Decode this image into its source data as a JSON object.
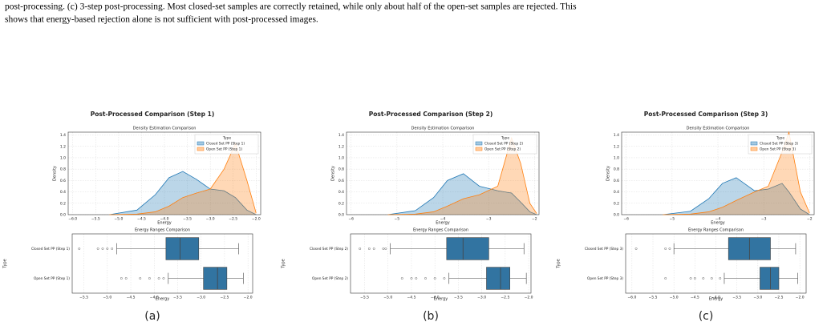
{
  "caption": [
    "post-processing. (c) 3-step post-processing. Most closed-set samples are correctly retained, while only about half of the open-set samples are rejected. This",
    "shows that energy-based rejection alone is not sufficient with post-processed images."
  ],
  "panels": [
    {
      "label": "(a)",
      "title": "Post-Processed Comparison (Step 1)",
      "density": {
        "title": "Density Estimation Comparison",
        "xlabel": "Energy",
        "ylabel": "Density",
        "legend_title": "Type",
        "xlim": [
          -6.1,
          -1.9
        ],
        "xticks": [
          {
            "value": -6,
            "label": "−6.0"
          },
          {
            "value": -5.5,
            "label": "−5.5"
          },
          {
            "value": -5,
            "label": "−5.0"
          },
          {
            "value": -4.5,
            "label": "−4.5"
          },
          {
            "value": -4,
            "label": "−4.0"
          },
          {
            "value": -3.5,
            "label": "−3.5"
          },
          {
            "value": -3,
            "label": "−3.0"
          },
          {
            "value": -2.5,
            "label": "−2.5"
          },
          {
            "value": -2,
            "label": "−2.0"
          }
        ],
        "ylim": [
          0,
          1.45
        ],
        "yticks": [
          {
            "value": 0,
            "label": "0.0"
          },
          0.2,
          0.4,
          0.6,
          0.8,
          {
            "value": 1,
            "label": "1.0"
          },
          1.2,
          1.4
        ],
        "x": [
          -5.2,
          -4.6,
          -4.2,
          -3.9,
          -3.6,
          -3.3,
          -3.0,
          -2.7,
          -2.45,
          -2.2,
          -2.0
        ],
        "series": [
          {
            "name": "Closed Set PP (Step 1)",
            "color": "#1f77b4",
            "values": [
              0,
              0.08,
              0.35,
              0.65,
              0.76,
              0.62,
              0.45,
              0.42,
              0.3,
              0.08,
              0
            ]
          },
          {
            "name": "Open Set PP (Step 1)",
            "color": "#ff7f0e",
            "values": [
              0,
              0.01,
              0.05,
              0.15,
              0.3,
              0.38,
              0.45,
              0.8,
              1.25,
              0.6,
              0.03
            ]
          }
        ]
      },
      "box": {
        "title": "Energy Ranges Comparison",
        "xlabel": "Energy",
        "ylabel": "Type",
        "color": "#3274a1",
        "xlim": [
          -5.75,
          -1.9
        ],
        "xticks": [
          {
            "value": -5.5,
            "label": "−5.5"
          },
          {
            "value": -5,
            "label": "−5.0"
          },
          {
            "value": -4.5,
            "label": "−4.5"
          },
          {
            "value": -4,
            "label": "−4.0"
          },
          {
            "value": -3.5,
            "label": "−3.5"
          },
          {
            "value": -3,
            "label": "−3.0"
          },
          {
            "value": -2.5,
            "label": "−2.5"
          },
          {
            "value": -2,
            "label": "−2.0"
          }
        ],
        "categories": [
          "Closed Set PP (Step 1)",
          "Open Set PP (Step 1)"
        ],
        "boxes": [
          {
            "whisker_low": -4.8,
            "q1": -3.75,
            "median": -3.45,
            "q3": -3.05,
            "whisker_high": -2.2,
            "outliers": [
              -5.6,
              -5.2,
              -5.1,
              -5.0,
              -4.9
            ]
          },
          {
            "whisker_low": -3.7,
            "q1": -2.95,
            "median": -2.65,
            "q3": -2.45,
            "whisker_high": -2.1,
            "outliers": [
              -4.7,
              -4.6,
              -4.3,
              -4.1,
              -3.9,
              -3.8
            ]
          }
        ]
      }
    },
    {
      "label": "(b)",
      "title": "Post-Processed Comparison (Step 2)",
      "density": {
        "title": "Density Estimation Comparison",
        "xlabel": "Energy",
        "ylabel": "Density",
        "legend_title": "Type",
        "xlim": [
          -6.1,
          -1.9
        ],
        "xticks": [
          {
            "value": -6,
            "label": "−6"
          },
          {
            "value": -5,
            "label": "−5"
          },
          {
            "value": -4,
            "label": "−4"
          },
          {
            "value": -3,
            "label": "−3"
          },
          {
            "value": -2,
            "label": "−2"
          }
        ],
        "ylim": [
          0,
          1.45
        ],
        "yticks": [
          {
            "value": 0,
            "label": "0.0"
          },
          0.2,
          0.4,
          0.6,
          0.8,
          {
            "value": 1,
            "label": "1.0"
          },
          1.2,
          1.4
        ],
        "x": [
          -5.2,
          -4.6,
          -4.2,
          -3.9,
          -3.55,
          -3.2,
          -2.8,
          -2.5,
          -2.3,
          -2.1,
          -1.95
        ],
        "series": [
          {
            "name": "Closed Set PP (Step 2)",
            "color": "#1f77b4",
            "values": [
              0,
              0.07,
              0.3,
              0.6,
              0.72,
              0.5,
              0.42,
              0.38,
              0.22,
              0.05,
              0
            ]
          },
          {
            "name": "Open Set PP (Step 2)",
            "color": "#ff7f0e",
            "values": [
              0,
              0.01,
              0.05,
              0.15,
              0.28,
              0.35,
              0.5,
              1.35,
              0.9,
              0.2,
              0.02
            ]
          }
        ]
      },
      "box": {
        "title": "Energy Ranges Comparison",
        "xlabel": "Energy",
        "ylabel": "Type",
        "color": "#3274a1",
        "xlim": [
          -5.8,
          -1.95
        ],
        "xticks": [
          {
            "value": -5.5,
            "label": "−5.5"
          },
          {
            "value": -5,
            "label": "−5.0"
          },
          {
            "value": -4.5,
            "label": "−4.5"
          },
          {
            "value": -4,
            "label": "−4.0"
          },
          {
            "value": -3.5,
            "label": "−3.5"
          },
          {
            "value": -3,
            "label": "−3.0"
          },
          {
            "value": -2.5,
            "label": "−2.5"
          },
          {
            "value": -2,
            "label": "−2.0"
          }
        ],
        "categories": [
          "Closed Set PP (Step 2)",
          "Open Set PP (Step 2)"
        ],
        "boxes": [
          {
            "whisker_low": -4.95,
            "q1": -3.75,
            "median": -3.4,
            "q3": -2.85,
            "whisker_high": -2.1,
            "outliers": [
              -5.6,
              -5.4,
              -5.3,
              -5.1,
              -5.05
            ]
          },
          {
            "whisker_low": -3.7,
            "q1": -2.9,
            "median": -2.6,
            "q3": -2.4,
            "whisker_high": -2.05,
            "outliers": [
              -4.7,
              -4.5,
              -4.4,
              -4.2,
              -4.0,
              -3.8
            ]
          }
        ]
      }
    },
    {
      "label": "(c)",
      "title": "Post-Processed Comparison (Step 3)",
      "density": {
        "title": "Density Estimation Comparison",
        "xlabel": "Energy",
        "ylabel": "Density",
        "legend_title": "Type",
        "xlim": [
          -6.1,
          -1.9
        ],
        "xticks": [
          {
            "value": -6,
            "label": "−6"
          },
          {
            "value": -5,
            "label": "−5"
          },
          {
            "value": -4,
            "label": "−4"
          },
          {
            "value": -3,
            "label": "−3"
          },
          {
            "value": -2,
            "label": "−2"
          }
        ],
        "ylim": [
          0,
          1.45
        ],
        "yticks": [
          {
            "value": 0,
            "label": "0.0"
          },
          0.2,
          0.4,
          0.6,
          0.8,
          {
            "value": 1,
            "label": "1.0"
          },
          1.2,
          1.4
        ],
        "x": [
          -5.2,
          -4.6,
          -4.2,
          -3.9,
          -3.6,
          -3.2,
          -2.9,
          -2.6,
          -2.45,
          -2.2,
          -2.0
        ],
        "series": [
          {
            "name": "Closed Set PP (Step 3)",
            "color": "#1f77b4",
            "values": [
              0,
              0.06,
              0.28,
              0.55,
              0.65,
              0.42,
              0.45,
              0.55,
              0.4,
              0.1,
              0
            ]
          },
          {
            "name": "Open Set PP (Step 3)",
            "color": "#ff7f0e",
            "values": [
              0,
              0.01,
              0.05,
              0.13,
              0.25,
              0.4,
              0.5,
              1.1,
              1.45,
              0.4,
              0.03
            ]
          }
        ]
      },
      "box": {
        "title": "Energy Ranges Comparison",
        "xlabel": "Energy",
        "ylabel": "Type",
        "color": "#3274a1",
        "xlim": [
          -6.15,
          -1.85
        ],
        "xticks": [
          {
            "value": -6,
            "label": "−6.0"
          },
          {
            "value": -5.5,
            "label": "−5.5"
          },
          {
            "value": -5,
            "label": "−5.0"
          },
          {
            "value": -4.5,
            "label": "−4.5"
          },
          {
            "value": -4,
            "label": "−4.0"
          },
          {
            "value": -3.5,
            "label": "−3.5"
          },
          {
            "value": -3,
            "label": "−3.0"
          },
          {
            "value": -2.5,
            "label": "−2.5"
          },
          {
            "value": -2,
            "label": "−2.0"
          }
        ],
        "categories": [
          "Closed Set PP (Step 3)",
          "Open Set PP (Step 3)"
        ],
        "boxes": [
          {
            "whisker_low": -5.0,
            "q1": -3.7,
            "median": -3.2,
            "q3": -2.7,
            "whisker_high": -2.1,
            "outliers": [
              -5.9,
              -5.2,
              -5.1
            ]
          },
          {
            "whisker_low": -3.8,
            "q1": -2.95,
            "median": -2.7,
            "q3": -2.5,
            "whisker_high": -2.05,
            "outliers": [
              -5.2,
              -4.6,
              -4.5,
              -4.3,
              -4.1,
              -3.9
            ]
          }
        ]
      }
    }
  ]
}
